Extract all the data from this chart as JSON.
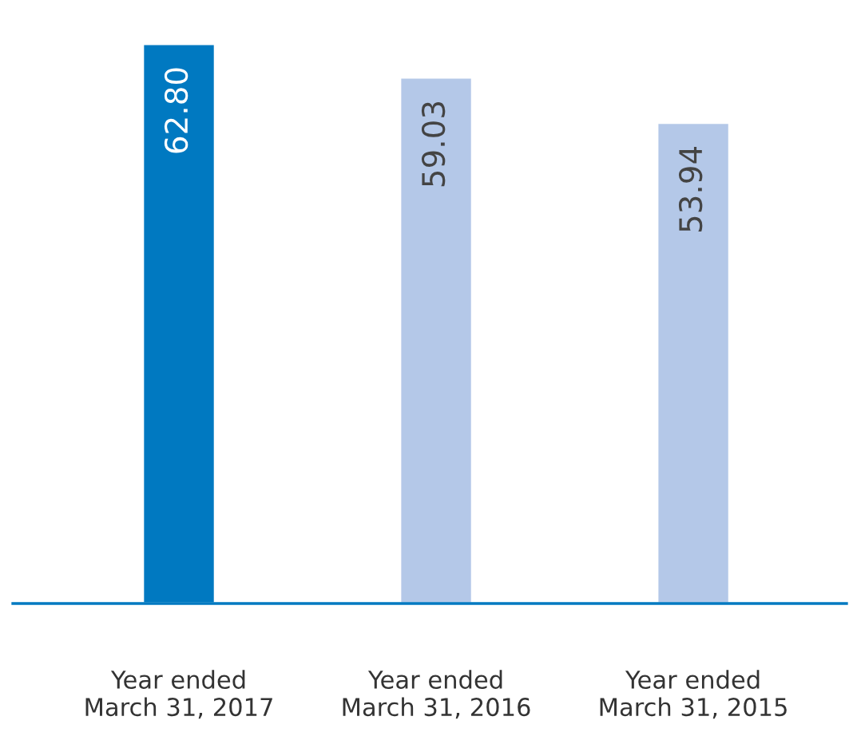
{
  "chart_data": {
    "type": "bar",
    "categories": [
      "Year ended\nMarch 31, 2017",
      "Year ended\nMarch 31, 2016",
      "Year ended\nMarch 31, 2015"
    ],
    "values": [
      62.8,
      59.03,
      53.94
    ],
    "value_labels": [
      "62.80",
      "59.03",
      "53.94"
    ],
    "colors": [
      "#0079c1",
      "#b4c8e8",
      "#b4c8e8"
    ],
    "tick_labels": "x",
    "grid": false,
    "legend": false
  }
}
